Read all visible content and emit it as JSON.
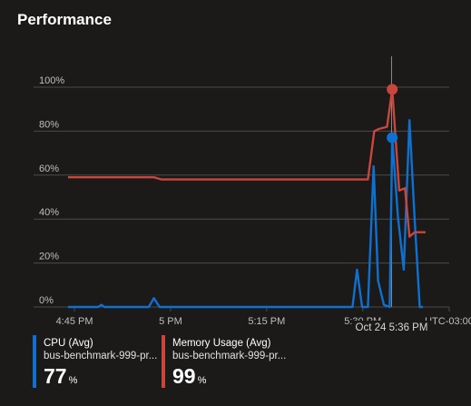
{
  "card": {
    "title": "Performance"
  },
  "colors": {
    "background": "#1b1a19",
    "cpu": "#1070d0",
    "memory": "#c8463b",
    "grid": "#4a4a4a",
    "axis_text": "#bfbfbf"
  },
  "chart_data": {
    "type": "line",
    "y_ticks": [
      "0%",
      "20%",
      "40%",
      "60%",
      "80%",
      "100%"
    ],
    "ylim": [
      0,
      100
    ],
    "x_ticks": [
      {
        "label": "4:45 PM",
        "t": 0
      },
      {
        "label": "5 PM",
        "t": 15
      },
      {
        "label": "5:15 PM",
        "t": 30
      },
      {
        "label": "5:30 PM",
        "t": 45
      },
      {
        "label": "UTC-03:00",
        "t": 58.5
      }
    ],
    "xlim": [
      -1,
      58.5
    ],
    "cursor": {
      "label": "Oct 24 5:36 PM",
      "t": 49.5
    },
    "series": [
      {
        "name": "CPU (Avg)",
        "color": "#1070d0",
        "points": [
          [
            -1,
            0
          ],
          [
            3.7,
            0
          ],
          [
            4.2,
            1
          ],
          [
            4.7,
            0
          ],
          [
            11.6,
            0
          ],
          [
            12.4,
            4
          ],
          [
            13.3,
            0
          ],
          [
            43.4,
            0
          ],
          [
            44.1,
            17
          ],
          [
            44.9,
            0
          ],
          [
            45.8,
            0
          ],
          [
            46.7,
            64
          ],
          [
            47.4,
            12
          ],
          [
            48.3,
            1
          ],
          [
            49.2,
            0
          ],
          [
            49.6,
            77
          ],
          [
            50.5,
            41
          ],
          [
            51.4,
            17
          ],
          [
            52.3,
            85
          ],
          [
            53.1,
            40
          ],
          [
            53.9,
            0
          ],
          [
            54.4,
            0
          ]
        ],
        "markers": [
          [
            49.6,
            77
          ]
        ]
      },
      {
        "name": "Memory Usage (Avg)",
        "color": "#c8463b",
        "points": [
          [
            -1,
            59
          ],
          [
            12.4,
            59
          ],
          [
            13.6,
            58
          ],
          [
            45.8,
            58
          ],
          [
            46.8,
            80
          ],
          [
            47.5,
            81
          ],
          [
            48.8,
            82
          ],
          [
            49.6,
            99
          ],
          [
            50.7,
            53
          ],
          [
            51.6,
            54
          ],
          [
            52.3,
            32
          ],
          [
            53.1,
            34
          ],
          [
            54.8,
            34
          ]
        ],
        "markers": [
          [
            49.6,
            99
          ]
        ]
      }
    ],
    "grid": true,
    "legend_position": "bottom-left"
  },
  "legend": [
    {
      "name": "CPU (Avg)",
      "resource": "bus-benchmark-999-pr...",
      "value": "77",
      "unit": "%",
      "color": "#1070d0"
    },
    {
      "name": "Memory Usage (Avg)",
      "resource": "bus-benchmark-999-pr...",
      "value": "99",
      "unit": "%",
      "color": "#c8463b"
    }
  ]
}
